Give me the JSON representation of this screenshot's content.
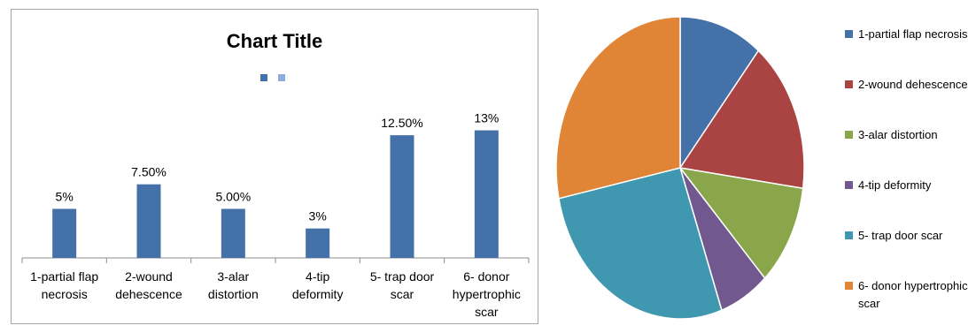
{
  "chart_data": [
    {
      "type": "bar",
      "title": "Chart Title",
      "categories": [
        [
          "1-partial flap",
          "necrosis"
        ],
        [
          "2-wound",
          "dehescence"
        ],
        [
          "3-alar",
          "distortion"
        ],
        [
          "4-tip",
          "deformity"
        ],
        [
          "5- trap door",
          "scar"
        ],
        [
          "6- donor",
          "hypertrophic",
          "scar"
        ]
      ],
      "values": [
        5,
        7.5,
        5,
        3,
        12.5,
        13
      ],
      "data_labels": [
        "5%",
        "7.50%",
        "5.00%",
        "3%",
        "12.50%",
        "13%"
      ],
      "ylim": [
        0,
        13.5
      ],
      "color": "#4472a8",
      "legend_colors": [
        "#4472a8",
        "#8faadc"
      ],
      "grid": false
    },
    {
      "type": "pie",
      "labels": [
        "1-partial flap necrosis",
        "2-wound dehescence",
        "3-alar distortion",
        "4-tip deformity",
        "5- trap door scar",
        [
          "6- donor hypertrophic",
          "scar"
        ]
      ],
      "values": [
        5,
        7.5,
        5,
        3,
        12.5,
        13
      ],
      "colors": [
        "#4472a8",
        "#a94442",
        "#8aa64a",
        "#71588f",
        "#4098b0",
        "#e08436"
      ],
      "legend": "right"
    }
  ]
}
